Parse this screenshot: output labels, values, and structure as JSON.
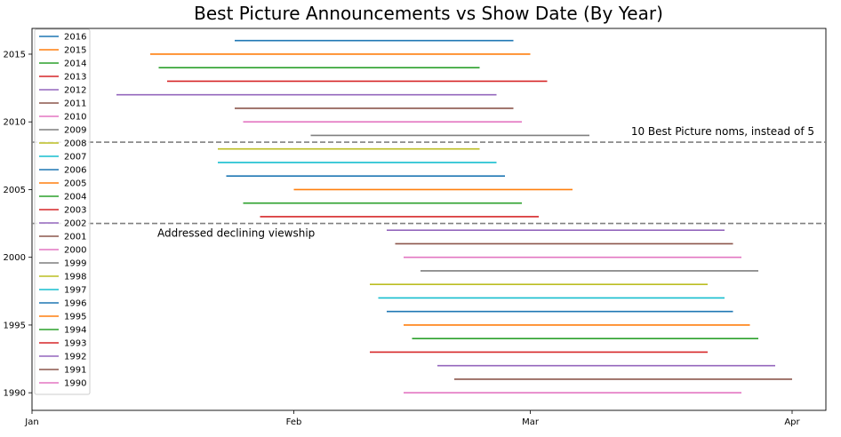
{
  "chart_data": {
    "type": "line",
    "title": "Best Picture Announcements vs Show Date (By Year)",
    "xlabel": "",
    "ylabel": "",
    "x_ticks": [
      {
        "label": "Jan",
        "day": 0
      },
      {
        "label": "Feb",
        "day": 31
      },
      {
        "label": "Mar",
        "day": 59
      },
      {
        "label": "Apr",
        "day": 90
      }
    ],
    "xlim_days": [
      0,
      94
    ],
    "y_ticks": [
      1990,
      1995,
      2000,
      2005,
      2010,
      2015
    ],
    "ylim": [
      1988.7,
      2016.9
    ],
    "legend_position": "top-left",
    "series": [
      {
        "name": "2016",
        "color": "#1f77b4",
        "y": 2016,
        "start_day": 24,
        "end_day": 57
      },
      {
        "name": "2015",
        "color": "#ff7f0e",
        "y": 2015,
        "start_day": 14,
        "end_day": 59
      },
      {
        "name": "2014",
        "color": "#2ca02c",
        "y": 2014,
        "start_day": 15,
        "end_day": 53
      },
      {
        "name": "2013",
        "color": "#d62728",
        "y": 2013,
        "start_day": 16,
        "end_day": 61
      },
      {
        "name": "2012",
        "color": "#9467bd",
        "y": 2012,
        "start_day": 10,
        "end_day": 55
      },
      {
        "name": "2011",
        "color": "#8c564b",
        "y": 2011,
        "start_day": 24,
        "end_day": 57
      },
      {
        "name": "2010",
        "color": "#e377c2",
        "y": 2010,
        "start_day": 25,
        "end_day": 58
      },
      {
        "name": "2009",
        "color": "#7f7f7f",
        "y": 2009,
        "start_day": 33,
        "end_day": 66
      },
      {
        "name": "2008",
        "color": "#bcbd22",
        "y": 2008,
        "start_day": 22,
        "end_day": 53
      },
      {
        "name": "2007",
        "color": "#17becf",
        "y": 2007,
        "start_day": 22,
        "end_day": 55
      },
      {
        "name": "2006",
        "color": "#1f77b4",
        "y": 2006,
        "start_day": 23,
        "end_day": 56
      },
      {
        "name": "2005",
        "color": "#ff7f0e",
        "y": 2005,
        "start_day": 31,
        "end_day": 64
      },
      {
        "name": "2004",
        "color": "#2ca02c",
        "y": 2004,
        "start_day": 25,
        "end_day": 58
      },
      {
        "name": "2003",
        "color": "#d62728",
        "y": 2003,
        "start_day": 27,
        "end_day": 60
      },
      {
        "name": "2002",
        "color": "#9467bd",
        "y": 2002,
        "start_day": 42,
        "end_day": 82
      },
      {
        "name": "2001",
        "color": "#8c564b",
        "y": 2001,
        "start_day": 43,
        "end_day": 83
      },
      {
        "name": "2000",
        "color": "#e377c2",
        "y": 2000,
        "start_day": 44,
        "end_day": 84
      },
      {
        "name": "1999",
        "color": "#7f7f7f",
        "y": 1999,
        "start_day": 46,
        "end_day": 86
      },
      {
        "name": "1998",
        "color": "#bcbd22",
        "y": 1998,
        "start_day": 40,
        "end_day": 80
      },
      {
        "name": "1997",
        "color": "#17becf",
        "y": 1997,
        "start_day": 41,
        "end_day": 82
      },
      {
        "name": "1996",
        "color": "#1f77b4",
        "y": 1996,
        "start_day": 42,
        "end_day": 83
      },
      {
        "name": "1995",
        "color": "#ff7f0e",
        "y": 1995,
        "start_day": 44,
        "end_day": 85
      },
      {
        "name": "1994",
        "color": "#2ca02c",
        "y": 1994,
        "start_day": 45,
        "end_day": 86
      },
      {
        "name": "1993",
        "color": "#d62728",
        "y": 1993,
        "start_day": 40,
        "end_day": 80
      },
      {
        "name": "1992",
        "color": "#9467bd",
        "y": 1992,
        "start_day": 48,
        "end_day": 88
      },
      {
        "name": "1991",
        "color": "#8c564b",
        "y": 1991,
        "start_day": 50,
        "end_day": 90
      },
      {
        "name": "1990",
        "color": "#e377c2",
        "y": 1990,
        "start_day": 44,
        "end_day": 84
      }
    ],
    "reference_lines": [
      {
        "y": 2008.5,
        "label": "10 Best Picture noms, instead of 5",
        "color": "#808080"
      },
      {
        "y": 2002.5,
        "label": "Addressed declining viewship",
        "color": "#808080"
      }
    ]
  }
}
